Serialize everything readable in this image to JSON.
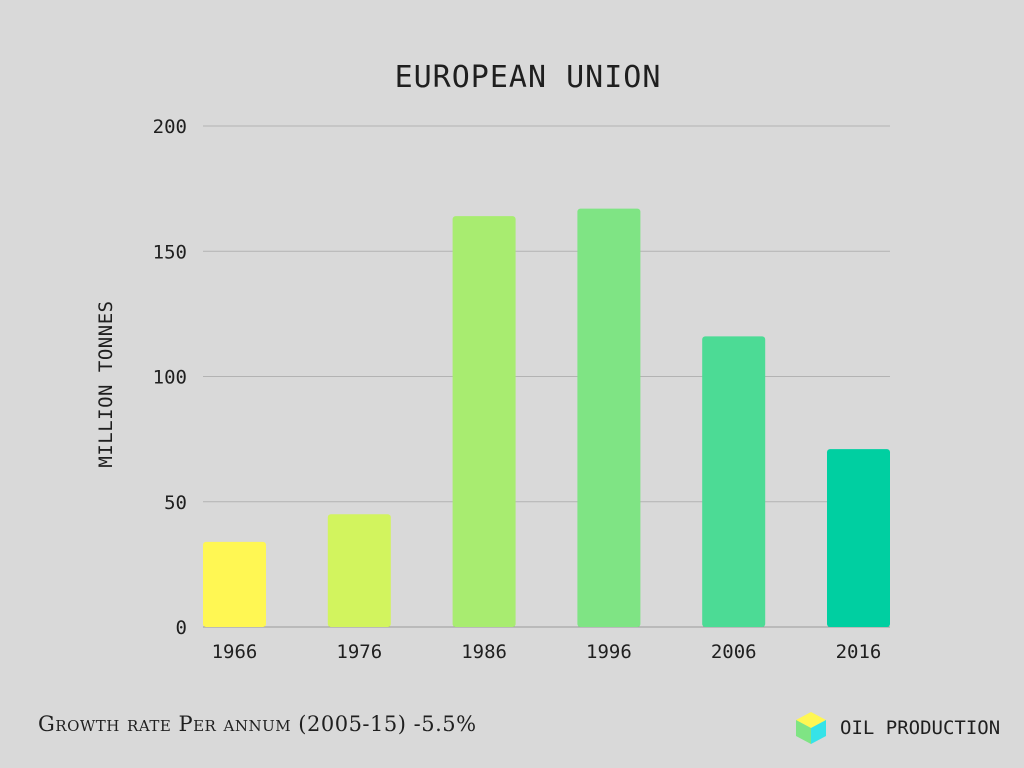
{
  "chart_data": {
    "type": "bar",
    "title": "EUROPEAN UNION",
    "ylabel": "MILLION TONNES",
    "xlabel": "",
    "categories": [
      "1966",
      "1976",
      "1986",
      "1996",
      "2006",
      "2016"
    ],
    "values": [
      34,
      45,
      164,
      167,
      116,
      71
    ],
    "ylim": [
      0,
      200
    ],
    "yticks": [
      0,
      50,
      100,
      150,
      200
    ],
    "grid": true,
    "colors": [
      "#fff753",
      "#d2f45e",
      "#a8ec70",
      "#7fe484",
      "#4cdb95",
      "#00cfa1"
    ]
  },
  "footer": {
    "growth_label": "Growth rate Per annum (2005-15) -5.5%",
    "brand_label": "OIL PRODUCTION"
  },
  "brand_icon": "cube-icon"
}
